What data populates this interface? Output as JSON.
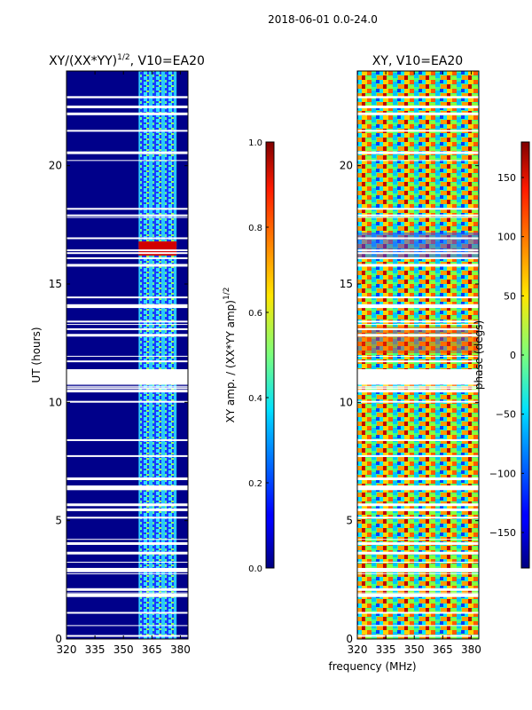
{
  "suptitle": "2018-06-01 0.0-24.0",
  "chart_data": [
    {
      "type": "heatmap",
      "title": "XY/(XX*YY)",
      "title_exponent": "1/2",
      "title_suffix": ", V10=EA20",
      "xlabel": "",
      "ylabel": "UT (hours)",
      "xlim": [
        320,
        384
      ],
      "ylim": [
        0,
        24
      ],
      "xticks": [
        320,
        335,
        350,
        365,
        380
      ],
      "yticks": [
        0,
        5,
        10,
        15,
        20
      ],
      "active_band_mhz": [
        358,
        378
      ],
      "flare_band_hours": [
        16.2,
        16.8
      ],
      "gap_band_hours": [
        10.8,
        11.4
      ],
      "colorbar": {
        "label": "XY amp. / (XX*YY amp)",
        "label_exponent": "1/2",
        "range": [
          0.0,
          1.0
        ],
        "ticks": [
          "0.0",
          "0.2",
          "0.4",
          "0.6",
          "0.8",
          "1.0"
        ]
      }
    },
    {
      "type": "heatmap",
      "title": "XY, V10=EA20",
      "xlabel": "frequency (MHz)",
      "ylabel": "",
      "xlim": [
        320,
        384
      ],
      "ylim": [
        0,
        24
      ],
      "xticks": [
        320,
        335,
        350,
        365,
        380
      ],
      "yticks": [
        0,
        5,
        10,
        15,
        20
      ],
      "gap_band_hours": [
        10.8,
        11.4
      ],
      "colorbar": {
        "label": "phase (degs)",
        "range": [
          -180,
          180
        ],
        "ticks": [
          "−150",
          "−100",
          "−50",
          "0",
          "50",
          "100",
          "150"
        ]
      }
    }
  ]
}
